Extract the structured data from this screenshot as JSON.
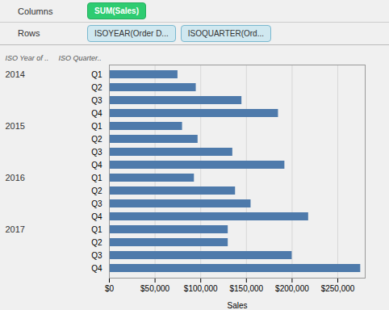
{
  "chart_data": {
    "type": "bar",
    "orientation": "horizontal",
    "shelves": [
      {
        "name": "Columns",
        "pills": [
          "SUM(Sales)"
        ]
      },
      {
        "name": "Rows",
        "pills": [
          "ISOYEAR(Order D...",
          "ISOQUARTER(Ord..."
        ]
      }
    ],
    "y_headers": [
      "ISO Year of ..",
      "ISO Quarter.."
    ],
    "groups": [
      "2014",
      null,
      null,
      null,
      "2015",
      null,
      null,
      null,
      "2016",
      null,
      null,
      null,
      "2017",
      null,
      null,
      null
    ],
    "categories": [
      "Q1",
      "Q2",
      "Q3",
      "Q4",
      "Q1",
      "Q2",
      "Q3",
      "Q4",
      "Q1",
      "Q2",
      "Q3",
      "Q4",
      "Q1",
      "Q2",
      "Q3",
      "Q4"
    ],
    "values": [
      75000,
      95000,
      145000,
      185000,
      80000,
      97000,
      135000,
      192000,
      93000,
      138000,
      155000,
      218000,
      130000,
      130000,
      200000,
      275000
    ],
    "color": "#4e7aab",
    "xlabel": "Sales",
    "xlim": [
      0,
      280000
    ],
    "xticks": [
      {
        "value": 0,
        "label": "$0"
      },
      {
        "value": 50000,
        "label": "$50,000"
      },
      {
        "value": 100000,
        "label": "$100,000"
      },
      {
        "value": 150000,
        "label": "$150,000"
      },
      {
        "value": 200000,
        "label": "$200,000"
      },
      {
        "value": 250000,
        "label": "$250,000"
      }
    ],
    "grid": true
  }
}
